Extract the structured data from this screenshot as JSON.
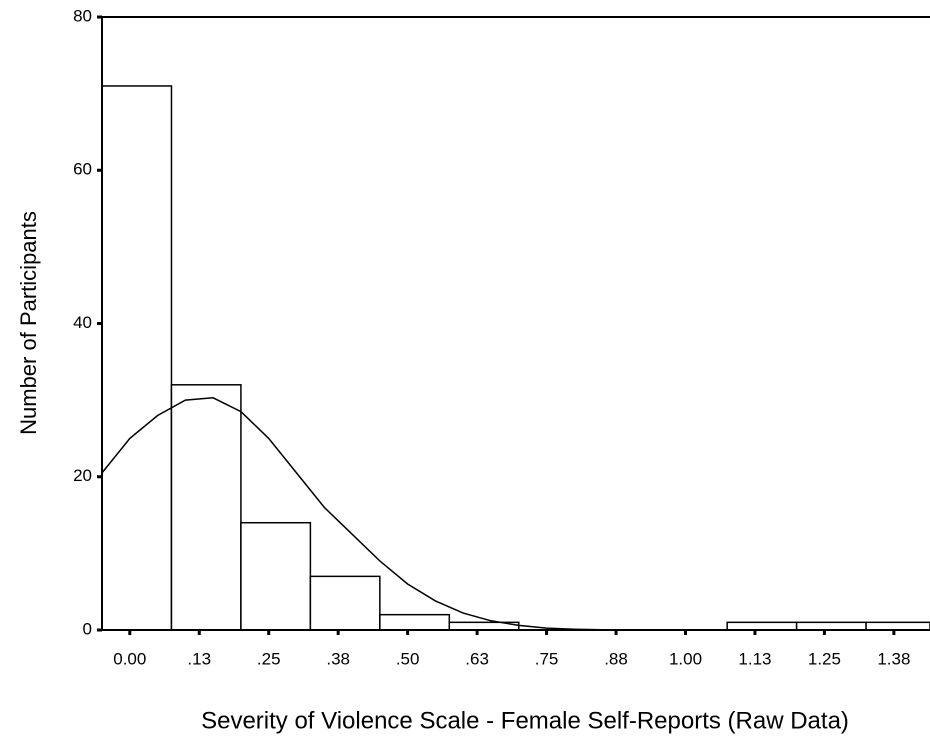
{
  "chart_data": {
    "type": "histogram",
    "xlabel": "Severity of Violence Scale - Female Self-Reports (Raw Data)",
    "ylabel": "Number of Participants",
    "bins": [
      -0.05,
      0.075,
      0.2,
      0.325,
      0.45,
      0.575,
      0.7,
      0.825,
      0.95,
      1.075,
      1.2,
      1.325,
      1.45
    ],
    "counts": [
      71,
      32,
      14,
      7,
      2,
      1,
      0,
      0,
      0,
      1,
      1,
      1
    ],
    "color": "#ffffff",
    "curve": {
      "x": [
        -0.05,
        0,
        0.05,
        0.1,
        0.15,
        0.2,
        0.25,
        0.3,
        0.35,
        0.4,
        0.45,
        0.5,
        0.55,
        0.6,
        0.65,
        0.7,
        0.75,
        0.8,
        0.85,
        0.9,
        1.0
      ],
      "y": [
        20.5,
        25,
        28,
        30,
        30.3,
        28.5,
        25,
        20.5,
        16,
        12.5,
        9,
        6,
        3.8,
        2.2,
        1.2,
        0.6,
        0.25,
        0.1,
        0.03,
        0,
        0
      ]
    },
    "xlim": [
      -0.05,
      1.44
    ],
    "ylim": [
      0,
      80
    ],
    "xticks": [
      {
        "value": 0,
        "label": "0.00"
      },
      {
        "value": 0.125,
        "label": ".13"
      },
      {
        "value": 0.25,
        "label": ".25"
      },
      {
        "value": 0.375,
        "label": ".38"
      },
      {
        "value": 0.5,
        "label": ".50"
      },
      {
        "value": 0.625,
        "label": ".63"
      },
      {
        "value": 0.75,
        "label": ".75"
      },
      {
        "value": 0.875,
        "label": ".88"
      },
      {
        "value": 1.0,
        "label": "1.00"
      },
      {
        "value": 1.125,
        "label": "1.13"
      },
      {
        "value": 1.25,
        "label": "1.25"
      },
      {
        "value": 1.375,
        "label": "1.38"
      }
    ],
    "yticks": [
      0,
      20,
      40,
      60,
      80
    ]
  }
}
